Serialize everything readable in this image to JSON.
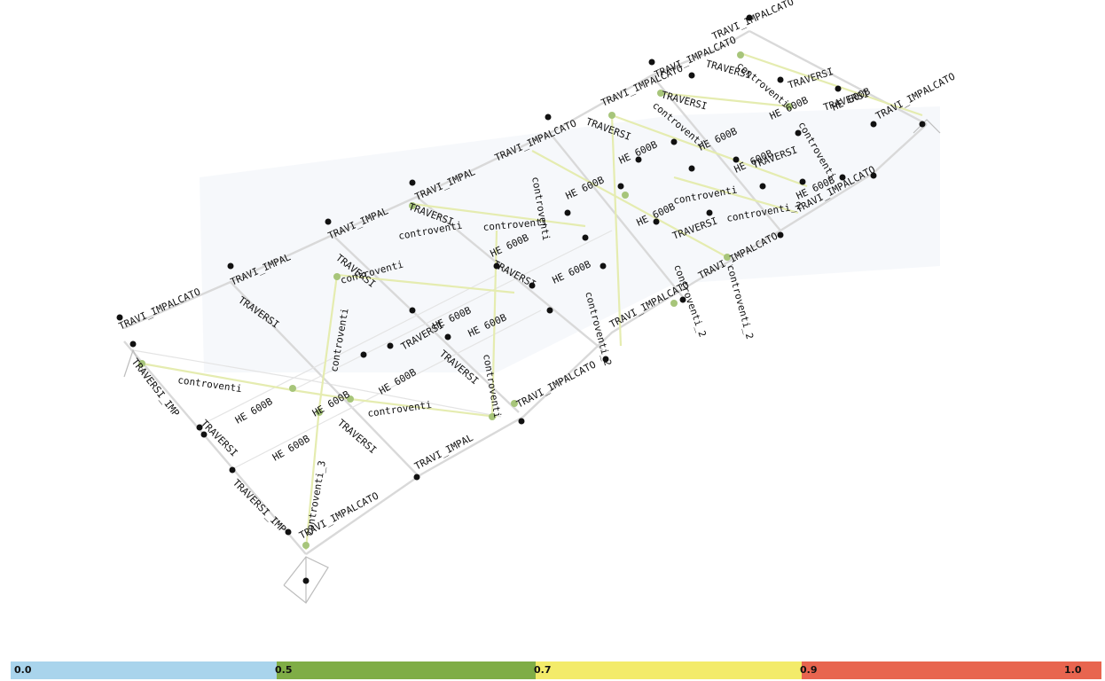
{
  "labels": {
    "travi": "TRAVI_IMPALCATO",
    "travi_short": "TRAVI_IMPAL",
    "traversi": "TRAVERSI",
    "traversi_imp": "TRAVERSI_IMP",
    "controventi": "controventi",
    "controventi_2": "controventi_2",
    "controventi_3": "controventi_3",
    "he600b": "HE 600B"
  },
  "legend": {
    "colors": [
      "#a9d4ec",
      "#7fad46",
      "#f3eb6a",
      "#e8654f"
    ],
    "ticks": [
      "0.0",
      "0.5",
      "0.7",
      "0.9",
      "1.0"
    ]
  }
}
